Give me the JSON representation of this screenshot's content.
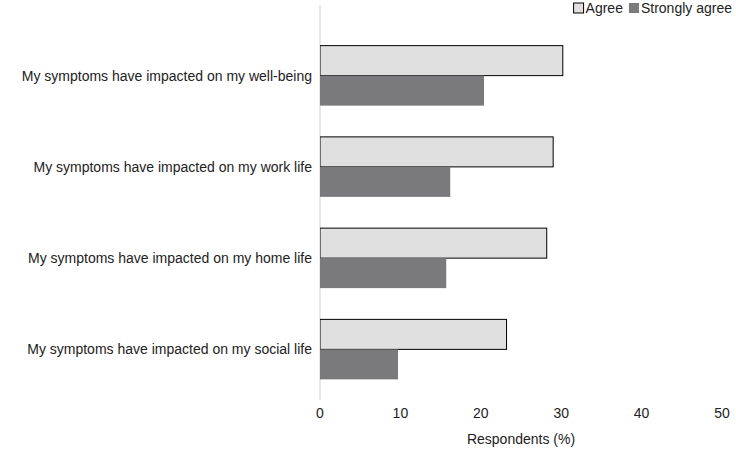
{
  "chart_data": {
    "type": "bar",
    "orientation": "horizontal",
    "categories": [
      "My symptoms have impacted on my well-being",
      "My symptoms have impacted on my work life",
      "My symptoms have impacted on my home life",
      "My symptoms have impacted on my social life"
    ],
    "series": [
      {
        "name": "Agree",
        "color": "#e0e0e0",
        "values": [
          30.2,
          29.0,
          28.2,
          23.2
        ]
      },
      {
        "name": "Strongly agree",
        "color": "#7a7a7c",
        "values": [
          20.4,
          16.2,
          15.7,
          9.7
        ]
      }
    ],
    "x_label": "Respondents (%)",
    "xlim": [
      0,
      50
    ],
    "xticks": [
      0,
      10,
      20,
      30,
      40,
      50
    ],
    "grid": false,
    "legend": "top-right"
  }
}
